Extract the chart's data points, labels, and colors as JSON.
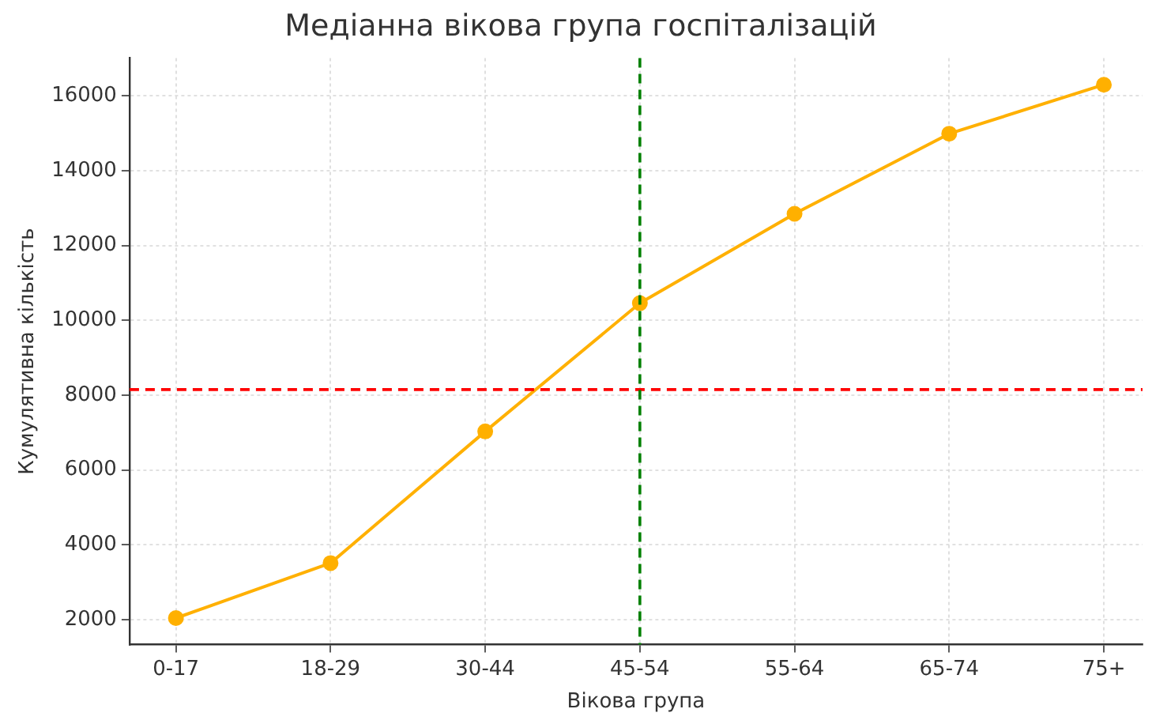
{
  "chart_data": {
    "type": "line",
    "title": "Медіанна вікова група госпіталізацій",
    "xlabel": "Вікова група",
    "ylabel": "Кумулятивна кількість",
    "categories": [
      "0-17",
      "18-29",
      "30-44",
      "45-54",
      "55-64",
      "65-74",
      "75+"
    ],
    "series": [
      {
        "color": "#ffb000",
        "values": [
          2040,
          3510,
          7030,
          10460,
          12850,
          14990,
          16300
        ]
      }
    ],
    "ylim": [
      1330,
      17010
    ],
    "yticks": [
      2000,
      4000,
      6000,
      8000,
      10000,
      12000,
      14000,
      16000
    ],
    "grid": true,
    "legend": false,
    "marker": "circle",
    "line_style": "solid",
    "ref_lines": [
      {
        "axis": "y",
        "value": 8150,
        "color": "#ff0000",
        "line_style": "dashed"
      },
      {
        "axis": "x",
        "value": "45-54",
        "color": "#008000",
        "line_style": "dashed"
      }
    ]
  }
}
